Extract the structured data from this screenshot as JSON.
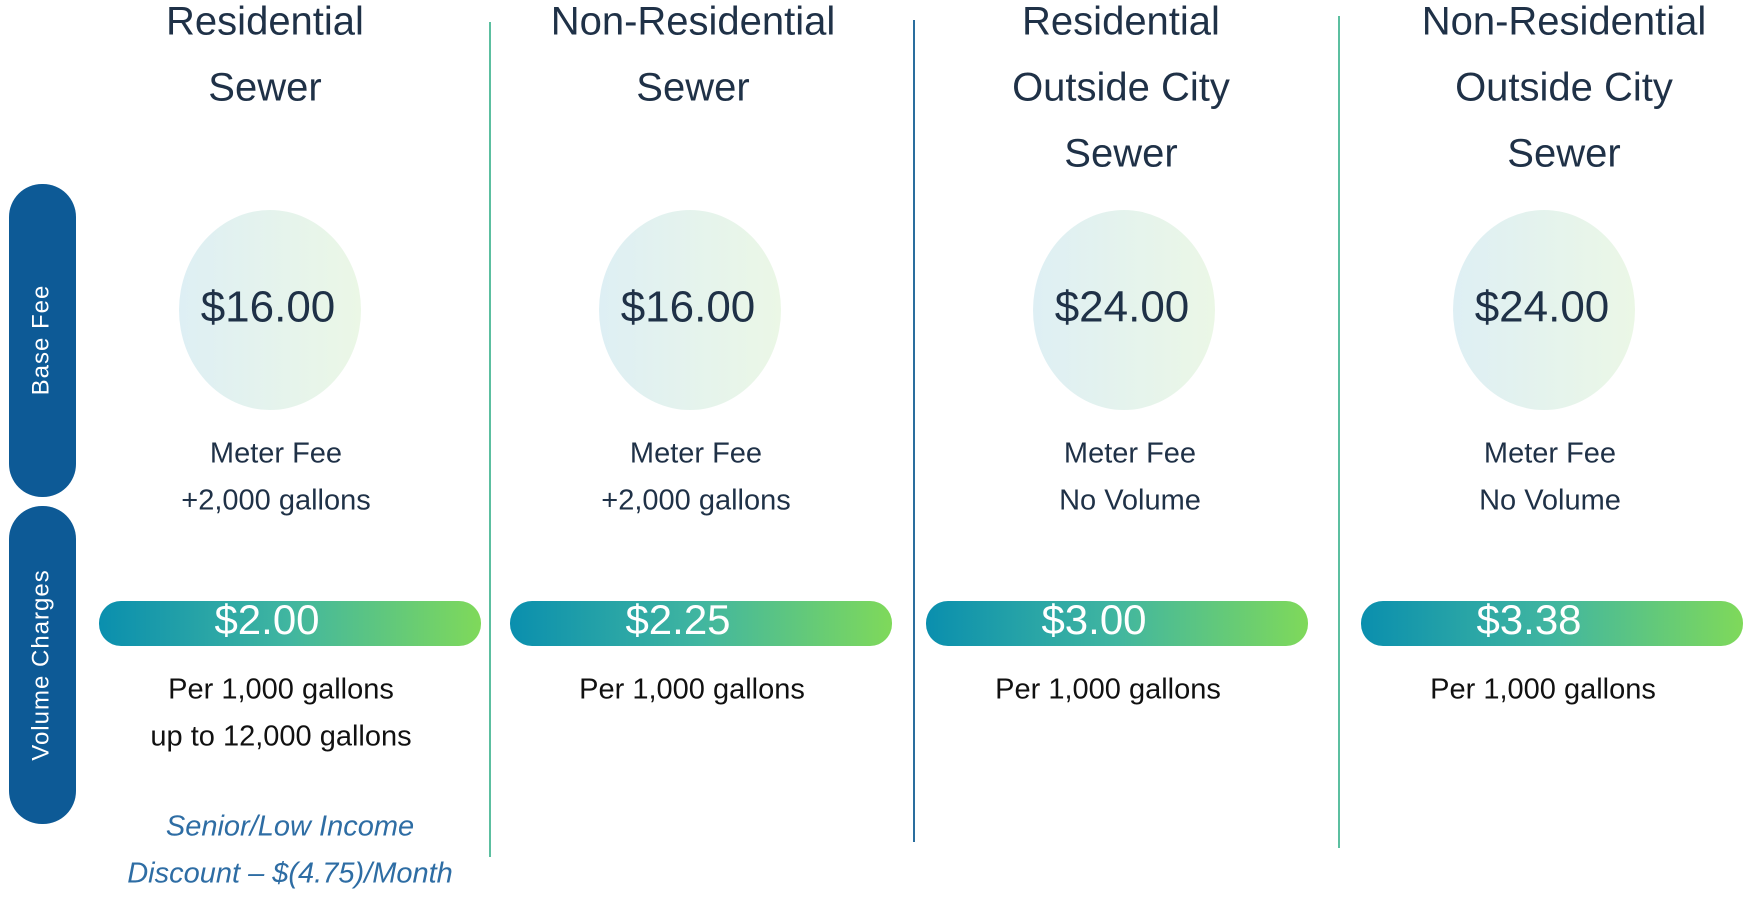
{
  "side_labels": [
    "Base Fee",
    "Volume Charges"
  ],
  "columns": [
    {
      "title": [
        "Residential",
        "Sewer"
      ],
      "base_fee": "$16.00",
      "base_note": [
        "Meter Fee",
        "+2,000 gallons"
      ],
      "volume_charge": "$2.00",
      "volume_note": [
        "Per 1,000 gallons",
        "up to 12,000 gallons"
      ]
    },
    {
      "title": [
        "Non-Residential",
        "Sewer"
      ],
      "base_fee": "$16.00",
      "base_note": [
        "Meter Fee",
        "+2,000 gallons"
      ],
      "volume_charge": "$2.25",
      "volume_note": [
        "Per 1,000 gallons"
      ]
    },
    {
      "title": [
        "Residential",
        "Outside City",
        "Sewer"
      ],
      "base_fee": "$24.00",
      "base_note": [
        "Meter Fee",
        "No Volume"
      ],
      "volume_charge": "$3.00",
      "volume_note": [
        "Per 1,000 gallons"
      ]
    },
    {
      "title": [
        "Non-Residential",
        "Outside City",
        "Sewer"
      ],
      "base_fee": "$24.00",
      "base_note": [
        "Meter Fee",
        "No Volume"
      ],
      "volume_charge": "$3.38",
      "volume_note": [
        "Per 1,000 gallons"
      ]
    }
  ],
  "discount": [
    "Senior/Low Income",
    "Discount – $(4.75)/Month"
  ]
}
